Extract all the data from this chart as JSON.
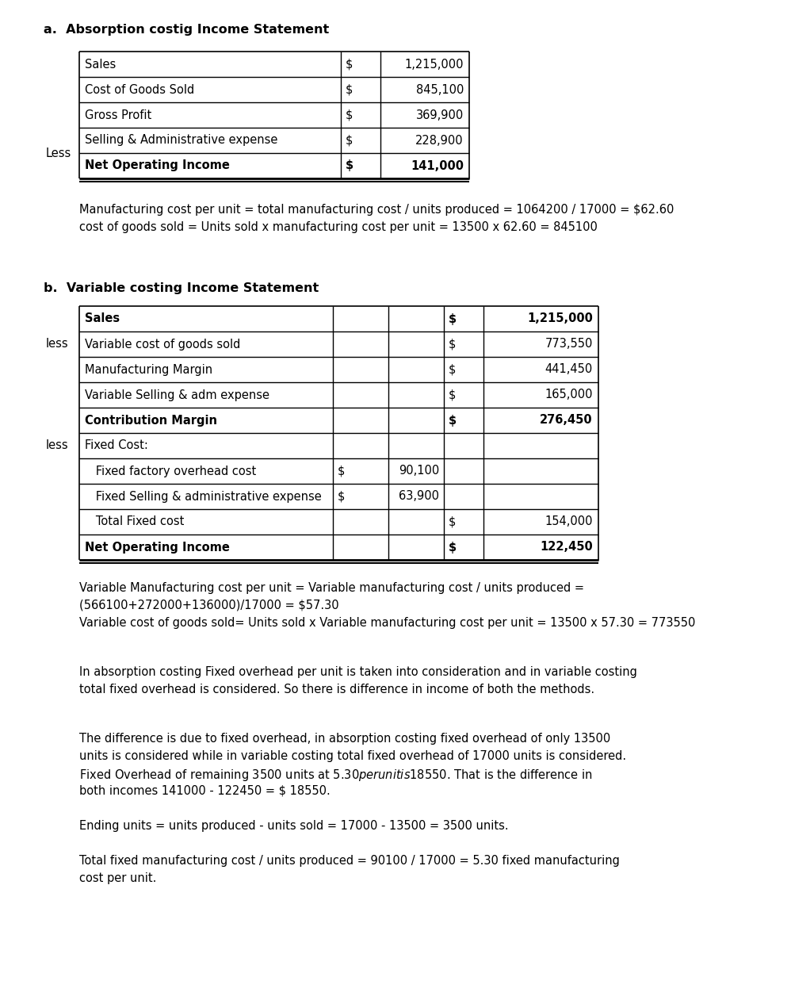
{
  "title_a": "a.  Absorption costig Income Statement",
  "title_b": "b.  Variable costing Income Statement",
  "table_a_rows": [
    {
      "label": "Sales",
      "col2": "$",
      "col3": "1,215,000",
      "bold": false
    },
    {
      "label": "Cost of Goods Sold",
      "col2": "$",
      "col3": "845,100",
      "bold": false
    },
    {
      "label": "Gross Profit",
      "col2": "$",
      "col3": "369,900",
      "bold": false
    },
    {
      "label": "Selling & Administrative expense",
      "col2": "$",
      "col3": "228,900",
      "bold": false
    },
    {
      "label": "Net Operating Income",
      "col2": "$",
      "col3": "141,000",
      "bold": true
    }
  ],
  "less_a_row": 3,
  "less_a_label": "Less",
  "note_a": [
    "Manufacturing cost per unit = total manufacturing cost / units produced = 1064200 / 17000 = $62.60",
    "cost of goods sold = Units sold x manufacturing cost per unit = 13500 x 62.60 = 845100"
  ],
  "table_b_rows": [
    {
      "label": "Sales",
      "c2": "",
      "c3": "",
      "c4": "$",
      "c5": "1,215,000",
      "bold": true
    },
    {
      "label": "Variable cost of goods sold",
      "c2": "",
      "c3": "",
      "c4": "$",
      "c5": "773,550",
      "bold": false
    },
    {
      "label": "Manufacturing Margin",
      "c2": "",
      "c3": "",
      "c4": "$",
      "c5": "441,450",
      "bold": false
    },
    {
      "label": "Variable Selling & adm expense",
      "c2": "",
      "c3": "",
      "c4": "$",
      "c5": "165,000",
      "bold": false
    },
    {
      "label": "Contribution Margin",
      "c2": "",
      "c3": "",
      "c4": "$",
      "c5": "276,450",
      "bold": true
    },
    {
      "label": "Fixed Cost:",
      "c2": "",
      "c3": "",
      "c4": "",
      "c5": "",
      "bold": false
    },
    {
      "label": "   Fixed factory overhead cost",
      "c2": "$",
      "c3": "90,100",
      "c4": "",
      "c5": "",
      "bold": false
    },
    {
      "label": "   Fixed Selling & administrative expense",
      "c2": "$",
      "c3": "63,900",
      "c4": "",
      "c5": "",
      "bold": false
    },
    {
      "label": "   Total Fixed cost",
      "c2": "",
      "c3": "",
      "c4": "$",
      "c5": "154,000",
      "bold": false
    },
    {
      "label": "Net Operating Income",
      "c2": "",
      "c3": "",
      "c4": "$",
      "c5": "122,450",
      "bold": true
    }
  ],
  "less_b_rows": [
    1,
    5
  ],
  "less_b_label": "less",
  "note_b": [
    "Variable Manufacturing cost per unit = Variable manufacturing cost / units produced =",
    "(566100+272000+136000)/17000 = $57.30",
    "Variable cost of goods sold= Units sold x Variable manufacturing cost per unit = 13500 x 57.30 = 773550"
  ],
  "note_c": [
    "In absorption costing Fixed overhead per unit is taken into consideration and in variable costing",
    "total fixed overhead is considered. So there is difference in income of both the methods."
  ],
  "note_d": [
    "The difference is due to fixed overhead, in absorption costing fixed overhead of only 13500",
    "units is considered while in variable costing total fixed overhead of 17000 units is considered.",
    "Fixed Overhead of remaining 3500 units at $5.30 per unit is $18550. That is the difference in",
    "both incomes 141000 - 122450 = $ 18550."
  ],
  "note_e": [
    "Ending units = units produced - units sold = 17000 - 13500 = 3500 units."
  ],
  "note_f": [
    "Total fixed manufacturing cost / units produced = 90100 / 17000 = 5.30 fixed manufacturing",
    "cost per unit."
  ],
  "bg_color": "#ffffff",
  "font_size": 10.5,
  "title_font_size": 11.5
}
